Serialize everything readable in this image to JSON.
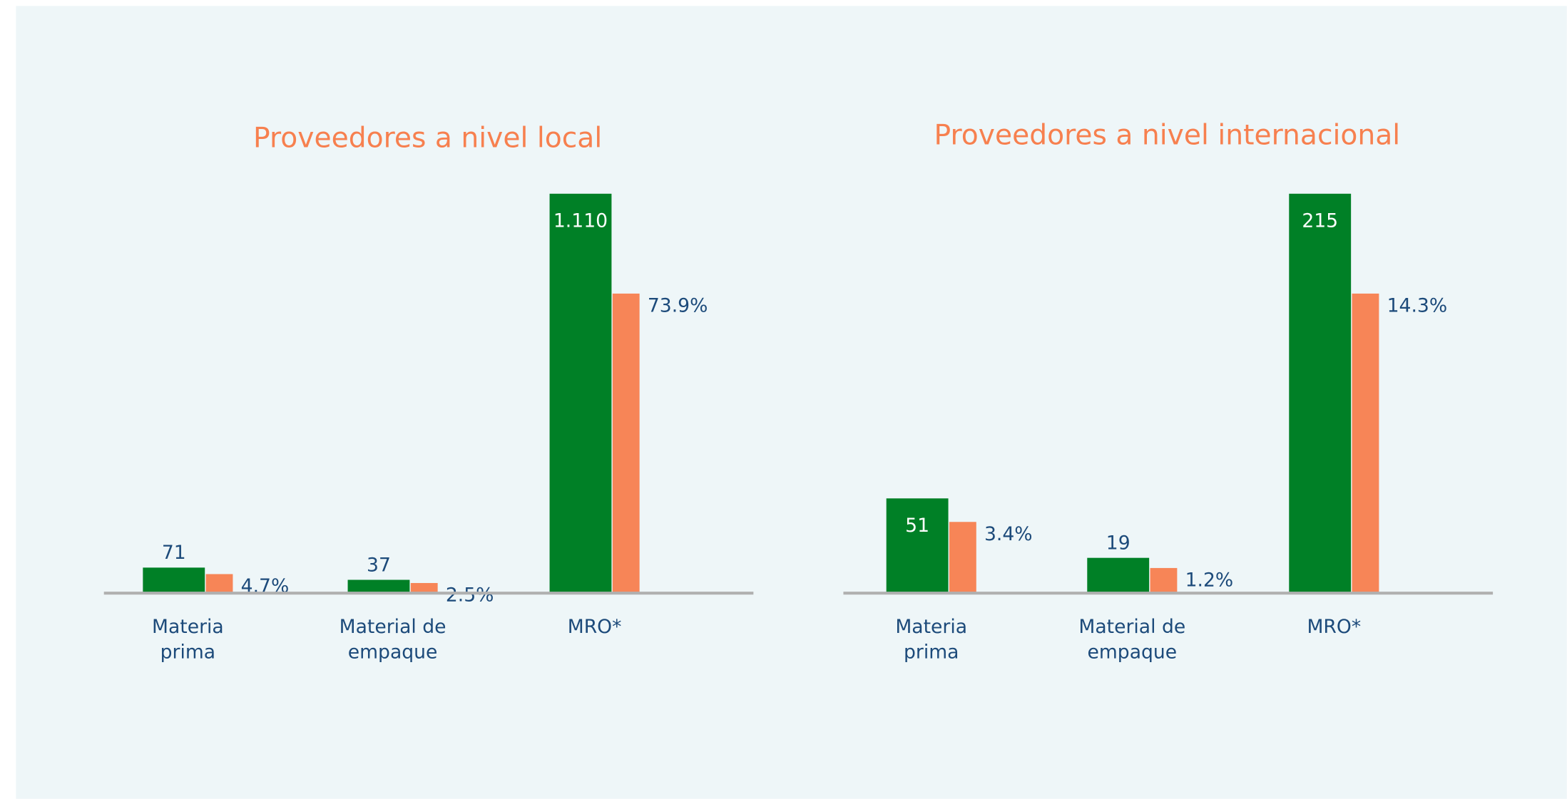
{
  "chart_data": [
    {
      "type": "bar",
      "title": "Proveedores a nivel local",
      "categories": [
        "Materia prima",
        "Material de empaque",
        "MRO*"
      ],
      "series": [
        {
          "color": "#008026",
          "values": [
            71,
            37,
            1110
          ],
          "value_labels": [
            "71",
            "37",
            "1.110"
          ]
        },
        {
          "color": "#f78557",
          "values": [
            4.7,
            2.5,
            73.9
          ],
          "value_labels": [
            "4.7%",
            "2.5%",
            "73.9%"
          ]
        }
      ]
    },
    {
      "type": "bar",
      "title": "Proveedores a nivel internacional",
      "categories": [
        "Materia prima",
        "Material de empaque",
        "MRO*"
      ],
      "series": [
        {
          "color": "#008026",
          "values": [
            51,
            19,
            215
          ],
          "value_labels": [
            "51",
            "19",
            "215"
          ]
        },
        {
          "color": "#f78557",
          "values": [
            3.4,
            1.2,
            14.3
          ],
          "value_labels": [
            "3.4%",
            "1.2%",
            "14.3%"
          ]
        }
      ]
    }
  ]
}
